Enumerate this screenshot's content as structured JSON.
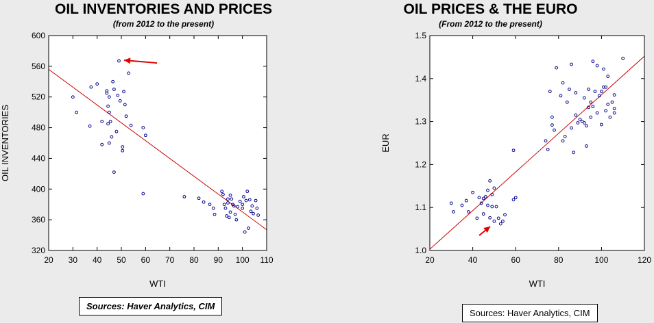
{
  "chart_data": [
    {
      "type": "scatter",
      "title": "OIL INVENTORIES AND PRICES",
      "subtitle": "(from 2012 to the present)",
      "xlabel": "WTI",
      "ylabel": "OIL INVENTORIES",
      "xlim": [
        20,
        110
      ],
      "ylim": [
        320,
        600
      ],
      "xticks": [
        20,
        30,
        40,
        50,
        60,
        70,
        80,
        90,
        100,
        110
      ],
      "yticks": [
        320,
        360,
        400,
        440,
        480,
        520,
        560,
        600
      ],
      "grid": false,
      "series": [
        {
          "points": [
            [
              30,
              520
            ],
            [
              31.5,
              500
            ],
            [
              37,
              482
            ],
            [
              37.5,
              533
            ],
            [
              40,
              537
            ],
            [
              42,
              488
            ],
            [
              42,
              458
            ],
            [
              44,
              528
            ],
            [
              44,
              525
            ],
            [
              44.5,
              508
            ],
            [
              44.5,
              485
            ],
            [
              45,
              520
            ],
            [
              45,
              500
            ],
            [
              45,
              460
            ],
            [
              45.5,
              488
            ],
            [
              46,
              468
            ],
            [
              46.5,
              540
            ],
            [
              47,
              530
            ],
            [
              47,
              422
            ],
            [
              48,
              475
            ],
            [
              48.5,
              522
            ],
            [
              49,
              567
            ],
            [
              49.5,
              515
            ],
            [
              50.5,
              450
            ],
            [
              50.5,
              455
            ],
            [
              51,
              527
            ],
            [
              51.5,
              510
            ],
            [
              52,
              495
            ],
            [
              53,
              551
            ],
            [
              54,
              483
            ],
            [
              59,
              480
            ],
            [
              59,
              394
            ],
            [
              60,
              470
            ],
            [
              76,
              390
            ],
            [
              82,
              388
            ],
            [
              84,
              383
            ],
            [
              86.5,
              380
            ],
            [
              88,
              375
            ],
            [
              88.5,
              367
            ],
            [
              91.5,
              397
            ],
            [
              92,
              393
            ],
            [
              92.5,
              380
            ],
            [
              93,
              375
            ],
            [
              93.5,
              365
            ],
            [
              94,
              387
            ],
            [
              94,
              382
            ],
            [
              94.5,
              363
            ],
            [
              95,
              392
            ],
            [
              95,
              370
            ],
            [
              95.5,
              387
            ],
            [
              96,
              380
            ],
            [
              96.5,
              378
            ],
            [
              97,
              367
            ],
            [
              97.5,
              360
            ],
            [
              98,
              377
            ],
            [
              99,
              384
            ],
            [
              100,
              380
            ],
            [
              100,
              375
            ],
            [
              100.5,
              390
            ],
            [
              101,
              344
            ],
            [
              101.5,
              385
            ],
            [
              102,
              397
            ],
            [
              102.5,
              349
            ],
            [
              103,
              386
            ],
            [
              103.5,
              371
            ],
            [
              104,
              378
            ],
            [
              104.5,
              368
            ],
            [
              105.5,
              385
            ],
            [
              106,
              375
            ],
            [
              106.5,
              366
            ]
          ]
        }
      ],
      "fit_line": [
        [
          20,
          556
        ],
        [
          110,
          347
        ]
      ],
      "point_color": "#00008b",
      "line_color": "#cc0000",
      "arrow_color": "#e00000",
      "source": "Sources:  Haver Analytics, CIM"
    },
    {
      "type": "scatter",
      "title": "OIL PRICES & THE EURO",
      "subtitle": "(From 2012 to the present)",
      "xlabel": "WTI",
      "ylabel": "EUR",
      "xlim": [
        20,
        120
      ],
      "ylim": [
        1.0,
        1.5
      ],
      "xticks": [
        20,
        40,
        60,
        80,
        100,
        120
      ],
      "yticks": [
        1.0,
        1.1,
        1.2,
        1.3,
        1.4,
        1.5
      ],
      "ytick_labels": [
        "1.0",
        "1.1",
        "1.2",
        "1.3",
        "1.4",
        "1.5"
      ],
      "grid": false,
      "series": [
        {
          "points": [
            [
              30,
              1.11
            ],
            [
              31,
              1.09
            ],
            [
              35,
              1.105
            ],
            [
              37,
              1.116
            ],
            [
              38,
              1.09
            ],
            [
              40,
              1.135
            ],
            [
              42,
              1.075
            ],
            [
              43,
              1.123
            ],
            [
              44,
              1.11
            ],
            [
              45,
              1.121
            ],
            [
              45,
              1.085
            ],
            [
              46,
              1.125
            ],
            [
              47,
              1.14
            ],
            [
              47,
              1.105
            ],
            [
              48,
              1.162
            ],
            [
              48,
              1.076
            ],
            [
              49,
              1.13
            ],
            [
              49,
              1.102
            ],
            [
              50,
              1.145
            ],
            [
              50,
              1.068
            ],
            [
              51,
              1.102
            ],
            [
              52,
              1.075
            ],
            [
              53,
              1.062
            ],
            [
              54,
              1.068
            ],
            [
              55,
              1.083
            ],
            [
              59,
              1.233
            ],
            [
              59,
              1.118
            ],
            [
              60,
              1.123
            ],
            [
              74,
              1.255
            ],
            [
              75,
              1.235
            ],
            [
              76,
              1.37
            ],
            [
              77,
              1.31
            ],
            [
              77,
              1.292
            ],
            [
              78,
              1.28
            ],
            [
              79,
              1.425
            ],
            [
              81,
              1.36
            ],
            [
              82,
              1.39
            ],
            [
              82,
              1.255
            ],
            [
              83,
              1.265
            ],
            [
              84,
              1.345
            ],
            [
              85,
              1.375
            ],
            [
              86,
              1.433
            ],
            [
              86,
              1.285
            ],
            [
              87,
              1.228
            ],
            [
              88,
              1.315
            ],
            [
              88,
              1.367
            ],
            [
              89,
              1.297
            ],
            [
              90,
              1.305
            ],
            [
              91,
              1.3
            ],
            [
              92,
              1.355
            ],
            [
              92,
              1.297
            ],
            [
              93,
              1.29
            ],
            [
              93,
              1.243
            ],
            [
              94,
              1.375
            ],
            [
              94,
              1.333
            ],
            [
              95,
              1.345
            ],
            [
              95,
              1.31
            ],
            [
              96,
              1.44
            ],
            [
              96,
              1.335
            ],
            [
              97,
              1.37
            ],
            [
              98,
              1.43
            ],
            [
              98,
              1.32
            ],
            [
              99,
              1.36
            ],
            [
              100,
              1.37
            ],
            [
              100,
              1.293
            ],
            [
              101,
              1.38
            ],
            [
              101,
              1.422
            ],
            [
              102,
              1.325
            ],
            [
              102,
              1.38
            ],
            [
              103,
              1.405
            ],
            [
              103,
              1.34
            ],
            [
              104,
              1.31
            ],
            [
              105,
              1.345
            ],
            [
              106,
              1.33
            ],
            [
              106,
              1.362
            ],
            [
              106,
              1.32
            ],
            [
              110,
              1.447
            ]
          ]
        }
      ],
      "fit_line": [
        [
          20,
          1.003
        ],
        [
          120,
          1.452
        ]
      ],
      "point_color": "#00008b",
      "line_color": "#cc0000",
      "arrow_color": "#e00000",
      "source": "Sources:  Haver Analytics, CIM"
    }
  ]
}
